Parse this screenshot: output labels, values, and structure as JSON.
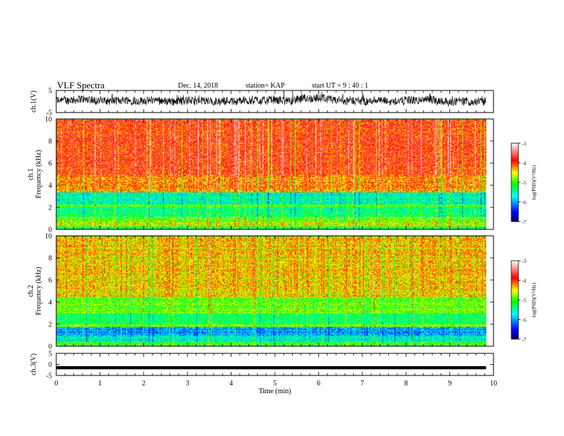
{
  "header": {
    "title": "VLF Spectra",
    "date": "Dec. 14, 2018",
    "station": "station= KAP",
    "start": "start  UT =   9 : 40 : 1"
  },
  "chart_data": [
    {
      "type": "line",
      "panel": "ch1-waveform",
      "ylabel": "ch.1(V)",
      "ylim": [
        -5,
        5
      ],
      "yticks": [
        "5",
        "-5"
      ],
      "xlim": [
        0,
        10
      ],
      "description_values": {
        "approx_min": -3,
        "approx_max": 4.5,
        "mean": 0.5
      }
    },
    {
      "type": "heatmap",
      "panel": "ch1-spectrogram",
      "ylabel": "ch.1\nFrequency (kHz)",
      "ylabel_top": "ch.1",
      "ylabel_bottom": "Frequency (kHz)",
      "ylim": [
        0,
        10
      ],
      "yticks": [
        "0",
        "2",
        "4",
        "6",
        "8",
        "10"
      ],
      "xlim": [
        0,
        9.8
      ],
      "bands": [
        {
          "f0": 0.0,
          "f1": 0.3,
          "level": -5.2
        },
        {
          "f0": 0.3,
          "f1": 0.7,
          "level": -4.6
        },
        {
          "f0": 0.7,
          "f1": 1.2,
          "level": -4.9
        },
        {
          "f0": 1.2,
          "f1": 2.0,
          "level": -5.4
        },
        {
          "f0": 2.0,
          "f1": 2.3,
          "level": -5.0
        },
        {
          "f0": 2.3,
          "f1": 3.4,
          "level": -5.6
        },
        {
          "f0": 3.4,
          "f1": 3.8,
          "level": -4.3
        },
        {
          "f0": 3.8,
          "f1": 5.0,
          "level": -4.2
        },
        {
          "f0": 5.0,
          "f1": 10.0,
          "level": -3.9
        }
      ],
      "colorbar": {
        "label": "log(PSD)(V²/Hz)",
        "range": [
          -7,
          -3
        ],
        "ticks": [
          "-3",
          "-4",
          "-5",
          "-6",
          "-7"
        ]
      }
    },
    {
      "type": "heatmap",
      "panel": "ch2-spectrogram",
      "ylabel_top": "ch.2",
      "ylabel_bottom": "Frequency (kHz)",
      "ylim": [
        0,
        10
      ],
      "yticks": [
        "0",
        "2",
        "4",
        "6",
        "8",
        "10"
      ],
      "xlim": [
        0,
        9.8
      ],
      "bands": [
        {
          "f0": 0.0,
          "f1": 0.4,
          "level": -5.1
        },
        {
          "f0": 0.4,
          "f1": 1.0,
          "level": -5.6
        },
        {
          "f0": 1.0,
          "f1": 1.8,
          "level": -6.0
        },
        {
          "f0": 1.8,
          "f1": 2.0,
          "level": -4.8
        },
        {
          "f0": 2.0,
          "f1": 3.0,
          "level": -5.3
        },
        {
          "f0": 3.0,
          "f1": 4.5,
          "level": -4.9
        },
        {
          "f0": 4.5,
          "f1": 10.0,
          "level": -4.4
        }
      ],
      "colorbar": {
        "label": "log(PSD)(V²/Hz)",
        "range": [
          -7,
          -3
        ],
        "ticks": [
          "-3",
          "-4",
          "-5",
          "-6",
          "-7"
        ]
      }
    },
    {
      "type": "line",
      "panel": "ch3-waveform",
      "ylabel": "ch.3(V)",
      "ylim": [
        -5,
        5
      ],
      "yticks": [
        "5",
        "0",
        "-5"
      ],
      "xlim": [
        0,
        9.8
      ],
      "values_note_free": true,
      "level": -1.5
    }
  ],
  "xaxis": {
    "label": "Time  (min)",
    "ticks": [
      "0",
      "1",
      "2",
      "3",
      "4",
      "5",
      "6",
      "7",
      "8",
      "9",
      "10"
    ],
    "range": [
      0,
      10
    ]
  },
  "colors": {
    "scale": [
      "#000080",
      "#0000ff",
      "#00ffff",
      "#00ff00",
      "#ffff00",
      "#ff0000",
      "#ffffff"
    ]
  }
}
